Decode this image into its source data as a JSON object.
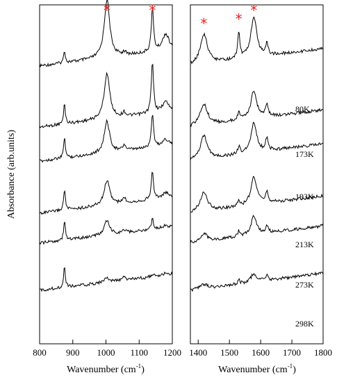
{
  "chart_data": {
    "type": "line",
    "ylabel": "Absorbance (arb.units)",
    "grid": false,
    "panels": [
      {
        "name": "left",
        "xlabel_main": "Wavenumber (cm",
        "xlabel_sup": "-1",
        "xlabel_end": ")",
        "xlim": [
          800,
          1200
        ],
        "xticks": [
          800,
          900,
          1000,
          1100,
          1200
        ],
        "peaks": [
          {
            "marker": "*",
            "x": 1003
          },
          {
            "marker": "*",
            "x": 1140
          }
        ]
      },
      {
        "name": "right",
        "xlabel_main": "Wavenumber (cm",
        "xlabel_sup": "-1",
        "xlabel_end": ")",
        "xlim": [
          1375,
          1800
        ],
        "xticks": [
          1400,
          1500,
          1600,
          1700,
          1800
        ],
        "peaks": [
          {
            "marker": "*",
            "x": 1418
          },
          {
            "marker": "*",
            "x": 1530
          },
          {
            "marker": "*",
            "x": 1578
          }
        ]
      }
    ],
    "series": [
      {
        "name": "80K",
        "offset": 5
      },
      {
        "name": "173K",
        "offset": 4
      },
      {
        "name": "193K",
        "offset": 3
      },
      {
        "name": "213K",
        "offset": 2
      },
      {
        "name": "273K",
        "offset": 1
      },
      {
        "name": "298K",
        "offset": 0
      }
    ],
    "bands": {
      "left": [
        {
          "center": 875,
          "width": 3,
          "heights": [
            1.5,
            2.5,
            2.6,
            2.6,
            2.4,
            2.6
          ]
        },
        {
          "center": 1003,
          "width": 10,
          "heights": [
            7.0,
            5.5,
            3.8,
            3.0,
            1.7,
            0.5
          ]
        },
        {
          "center": 1055,
          "width": 5,
          "heights": [
            0.4,
            0.5,
            0.7,
            0.6,
            0.4,
            0.4
          ]
        },
        {
          "center": 1140,
          "width": 4,
          "heights": [
            5.2,
            6.0,
            4.0,
            3.3,
            1.2,
            0.3
          ]
        },
        {
          "center": 1180,
          "width": 12,
          "heights": [
            2.0,
            1.2,
            0.8,
            0.6,
            0.3,
            0.2
          ]
        }
      ],
      "right": [
        {
          "center": 1418,
          "width": 14,
          "heights": [
            3.6,
            2.6,
            2.8,
            2.3,
            0.9,
            0.5
          ]
        },
        {
          "center": 1530,
          "width": 4,
          "heights": [
            3.3,
            1.0,
            0.9,
            0.8,
            0.6,
            0.5
          ]
        },
        {
          "center": 1578,
          "width": 11,
          "heights": [
            5.0,
            3.4,
            3.6,
            3.4,
            2.2,
            1.0
          ]
        },
        {
          "center": 1620,
          "width": 5,
          "heights": [
            1.3,
            1.6,
            1.5,
            1.4,
            0.9,
            0.6
          ]
        }
      ]
    }
  }
}
